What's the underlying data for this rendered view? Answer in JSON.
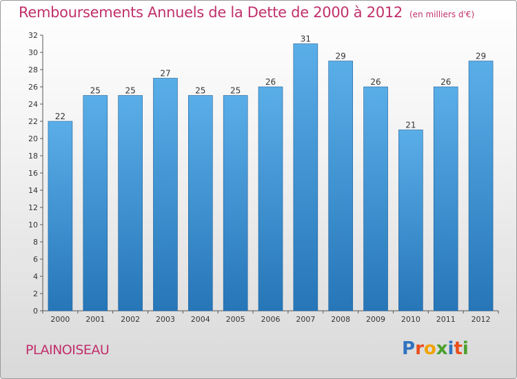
{
  "header": {
    "title": "Remboursements Annuels de la Dette de 2000 à 2012",
    "unit": "(en milliers d'€)"
  },
  "footer": {
    "commune": "PLAINOISEAU",
    "logo": {
      "letters": [
        "P",
        "r",
        "o",
        "x",
        "i",
        "t",
        "i"
      ],
      "colors": [
        "#2f73c0",
        "#e94e1b",
        "#f2a200",
        "#4aa02c",
        "#2f73c0",
        "#e94e1b",
        "#4aa02c"
      ]
    }
  },
  "colors": {
    "bar_light": "#5aaee8",
    "bar_dark": "#2676b8",
    "title": "#c0306b"
  },
  "chart_data": {
    "type": "bar",
    "title": "Remboursements Annuels de la Dette de 2000 à 2012",
    "categories": [
      "2000",
      "2001",
      "2002",
      "2003",
      "2004",
      "2005",
      "2006",
      "2007",
      "2008",
      "2009",
      "2010",
      "2011",
      "2012"
    ],
    "values": [
      22,
      25,
      25,
      27,
      25,
      25,
      26,
      31,
      29,
      26,
      21,
      26,
      29
    ],
    "ylim": [
      0,
      32
    ],
    "yticks": [
      0,
      2,
      4,
      6,
      8,
      10,
      12,
      14,
      16,
      18,
      20,
      22,
      24,
      26,
      28,
      30,
      32
    ],
    "grid": false,
    "data_labels": true
  }
}
